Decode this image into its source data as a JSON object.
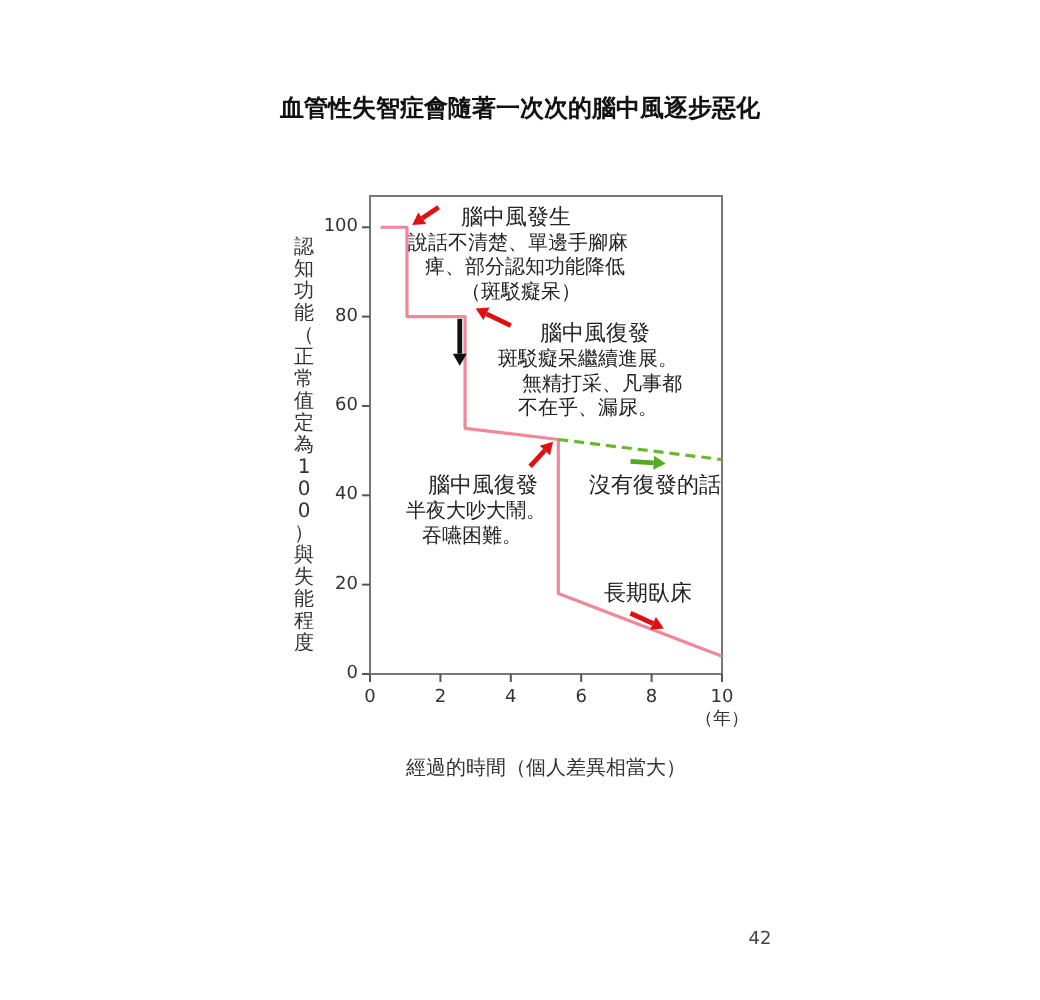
{
  "chart_data": {
    "type": "line",
    "title": "血管性失智症會隨著一次次的腦中風逐步惡化",
    "xlabel": "經過的時間（個人差異相當大）",
    "ylabel": "認知功能（正常值定為100）與失能程度",
    "xlim": [
      0,
      10
    ],
    "ylim": [
      0,
      107
    ],
    "xticks": [
      0,
      2,
      4,
      6,
      8,
      {
        "value": 10,
        "label": "10\n（年）"
      }
    ],
    "yticks": [
      0,
      20,
      40,
      60,
      80,
      100
    ],
    "grid": false,
    "marker": "none",
    "series": [
      {
        "color": "#f0889a",
        "line_style": "solid",
        "x": [
          0.3,
          1.05,
          1.05,
          2.7,
          2.7,
          5.35,
          5.35,
          10
        ],
        "values": [
          100,
          100,
          80,
          80,
          55,
          52.5,
          18,
          4
        ]
      },
      {
        "color": "#6ab82e",
        "line_style": "dashed",
        "x": [
          5.35,
          10
        ],
        "values": [
          52.5,
          48
        ]
      }
    ],
    "annotations": [
      "腦中風發生",
      "說話不清楚、單邊手腳麻",
      "痺、部分認知功能降低",
      "（斑駁癡呆）",
      "腦中風復發",
      "斑駁癡呆繼續進展。",
      "無精打采、凡事都",
      "不在乎、漏尿。",
      "腦中風復發",
      "半夜大吵大鬧。",
      "吞嚥困難。",
      "沒有復發的話",
      "長期臥床",
      "42"
    ]
  }
}
